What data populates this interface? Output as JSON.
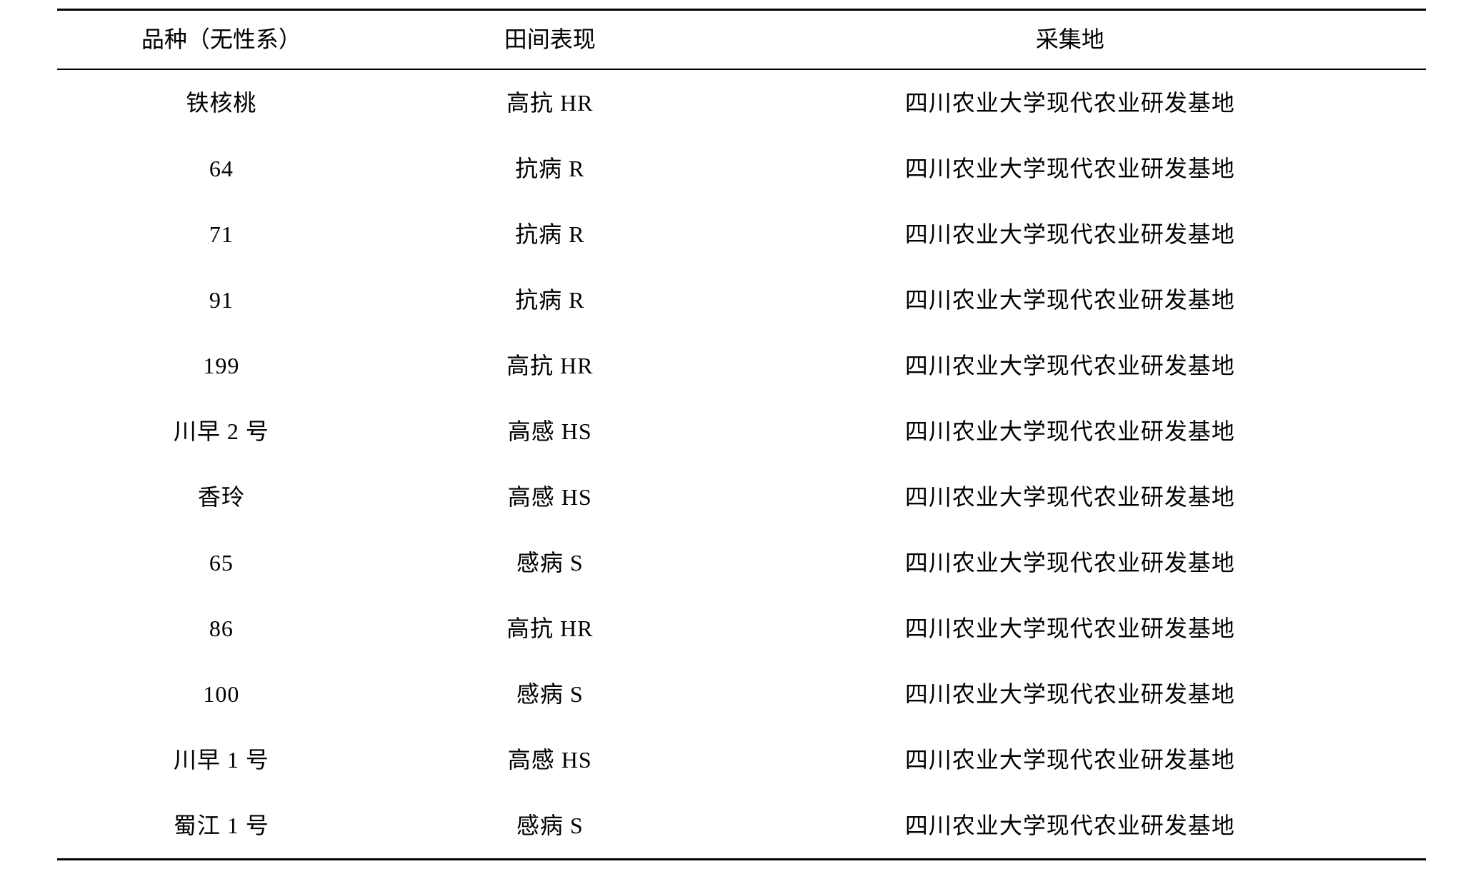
{
  "table": {
    "header_color": "#000000",
    "border_color": "#000000",
    "background_color": "#ffffff",
    "font_family": "SimSun",
    "header_fontsize": 32,
    "cell_fontsize": 32,
    "border_top_width": 3,
    "border_header_width": 2,
    "border_bottom_width": 3,
    "columns": [
      {
        "label": "品种（无性系）",
        "width_pct": 24,
        "align": "center"
      },
      {
        "label": "田间表现",
        "width_pct": 24,
        "align": "center"
      },
      {
        "label": "采集地",
        "width_pct": 52,
        "align": "center"
      }
    ],
    "rows": [
      {
        "c0": "铁核桃",
        "c1": "高抗 HR",
        "c2": "四川农业大学现代农业研发基地"
      },
      {
        "c0": "64",
        "c1": "抗病 R",
        "c2": "四川农业大学现代农业研发基地"
      },
      {
        "c0": "71",
        "c1": "抗病 R",
        "c2": "四川农业大学现代农业研发基地"
      },
      {
        "c0": "91",
        "c1": "抗病 R",
        "c2": "四川农业大学现代农业研发基地"
      },
      {
        "c0": "199",
        "c1": "高抗 HR",
        "c2": "四川农业大学现代农业研发基地"
      },
      {
        "c0": "川早 2 号",
        "c1": "高感 HS",
        "c2": "四川农业大学现代农业研发基地"
      },
      {
        "c0": "香玲",
        "c1": "高感 HS",
        "c2": "四川农业大学现代农业研发基地"
      },
      {
        "c0": "65",
        "c1": "感病 S",
        "c2": "四川农业大学现代农业研发基地"
      },
      {
        "c0": "86",
        "c1": "高抗 HR",
        "c2": "四川农业大学现代农业研发基地"
      },
      {
        "c0": "100",
        "c1": "感病 S",
        "c2": "四川农业大学现代农业研发基地"
      },
      {
        "c0": "川早 1 号",
        "c1": "高感 HS",
        "c2": "四川农业大学现代农业研发基地"
      },
      {
        "c0": "蜀江 1 号",
        "c1": "感病 S",
        "c2": "四川农业大学现代农业研发基地"
      }
    ]
  }
}
